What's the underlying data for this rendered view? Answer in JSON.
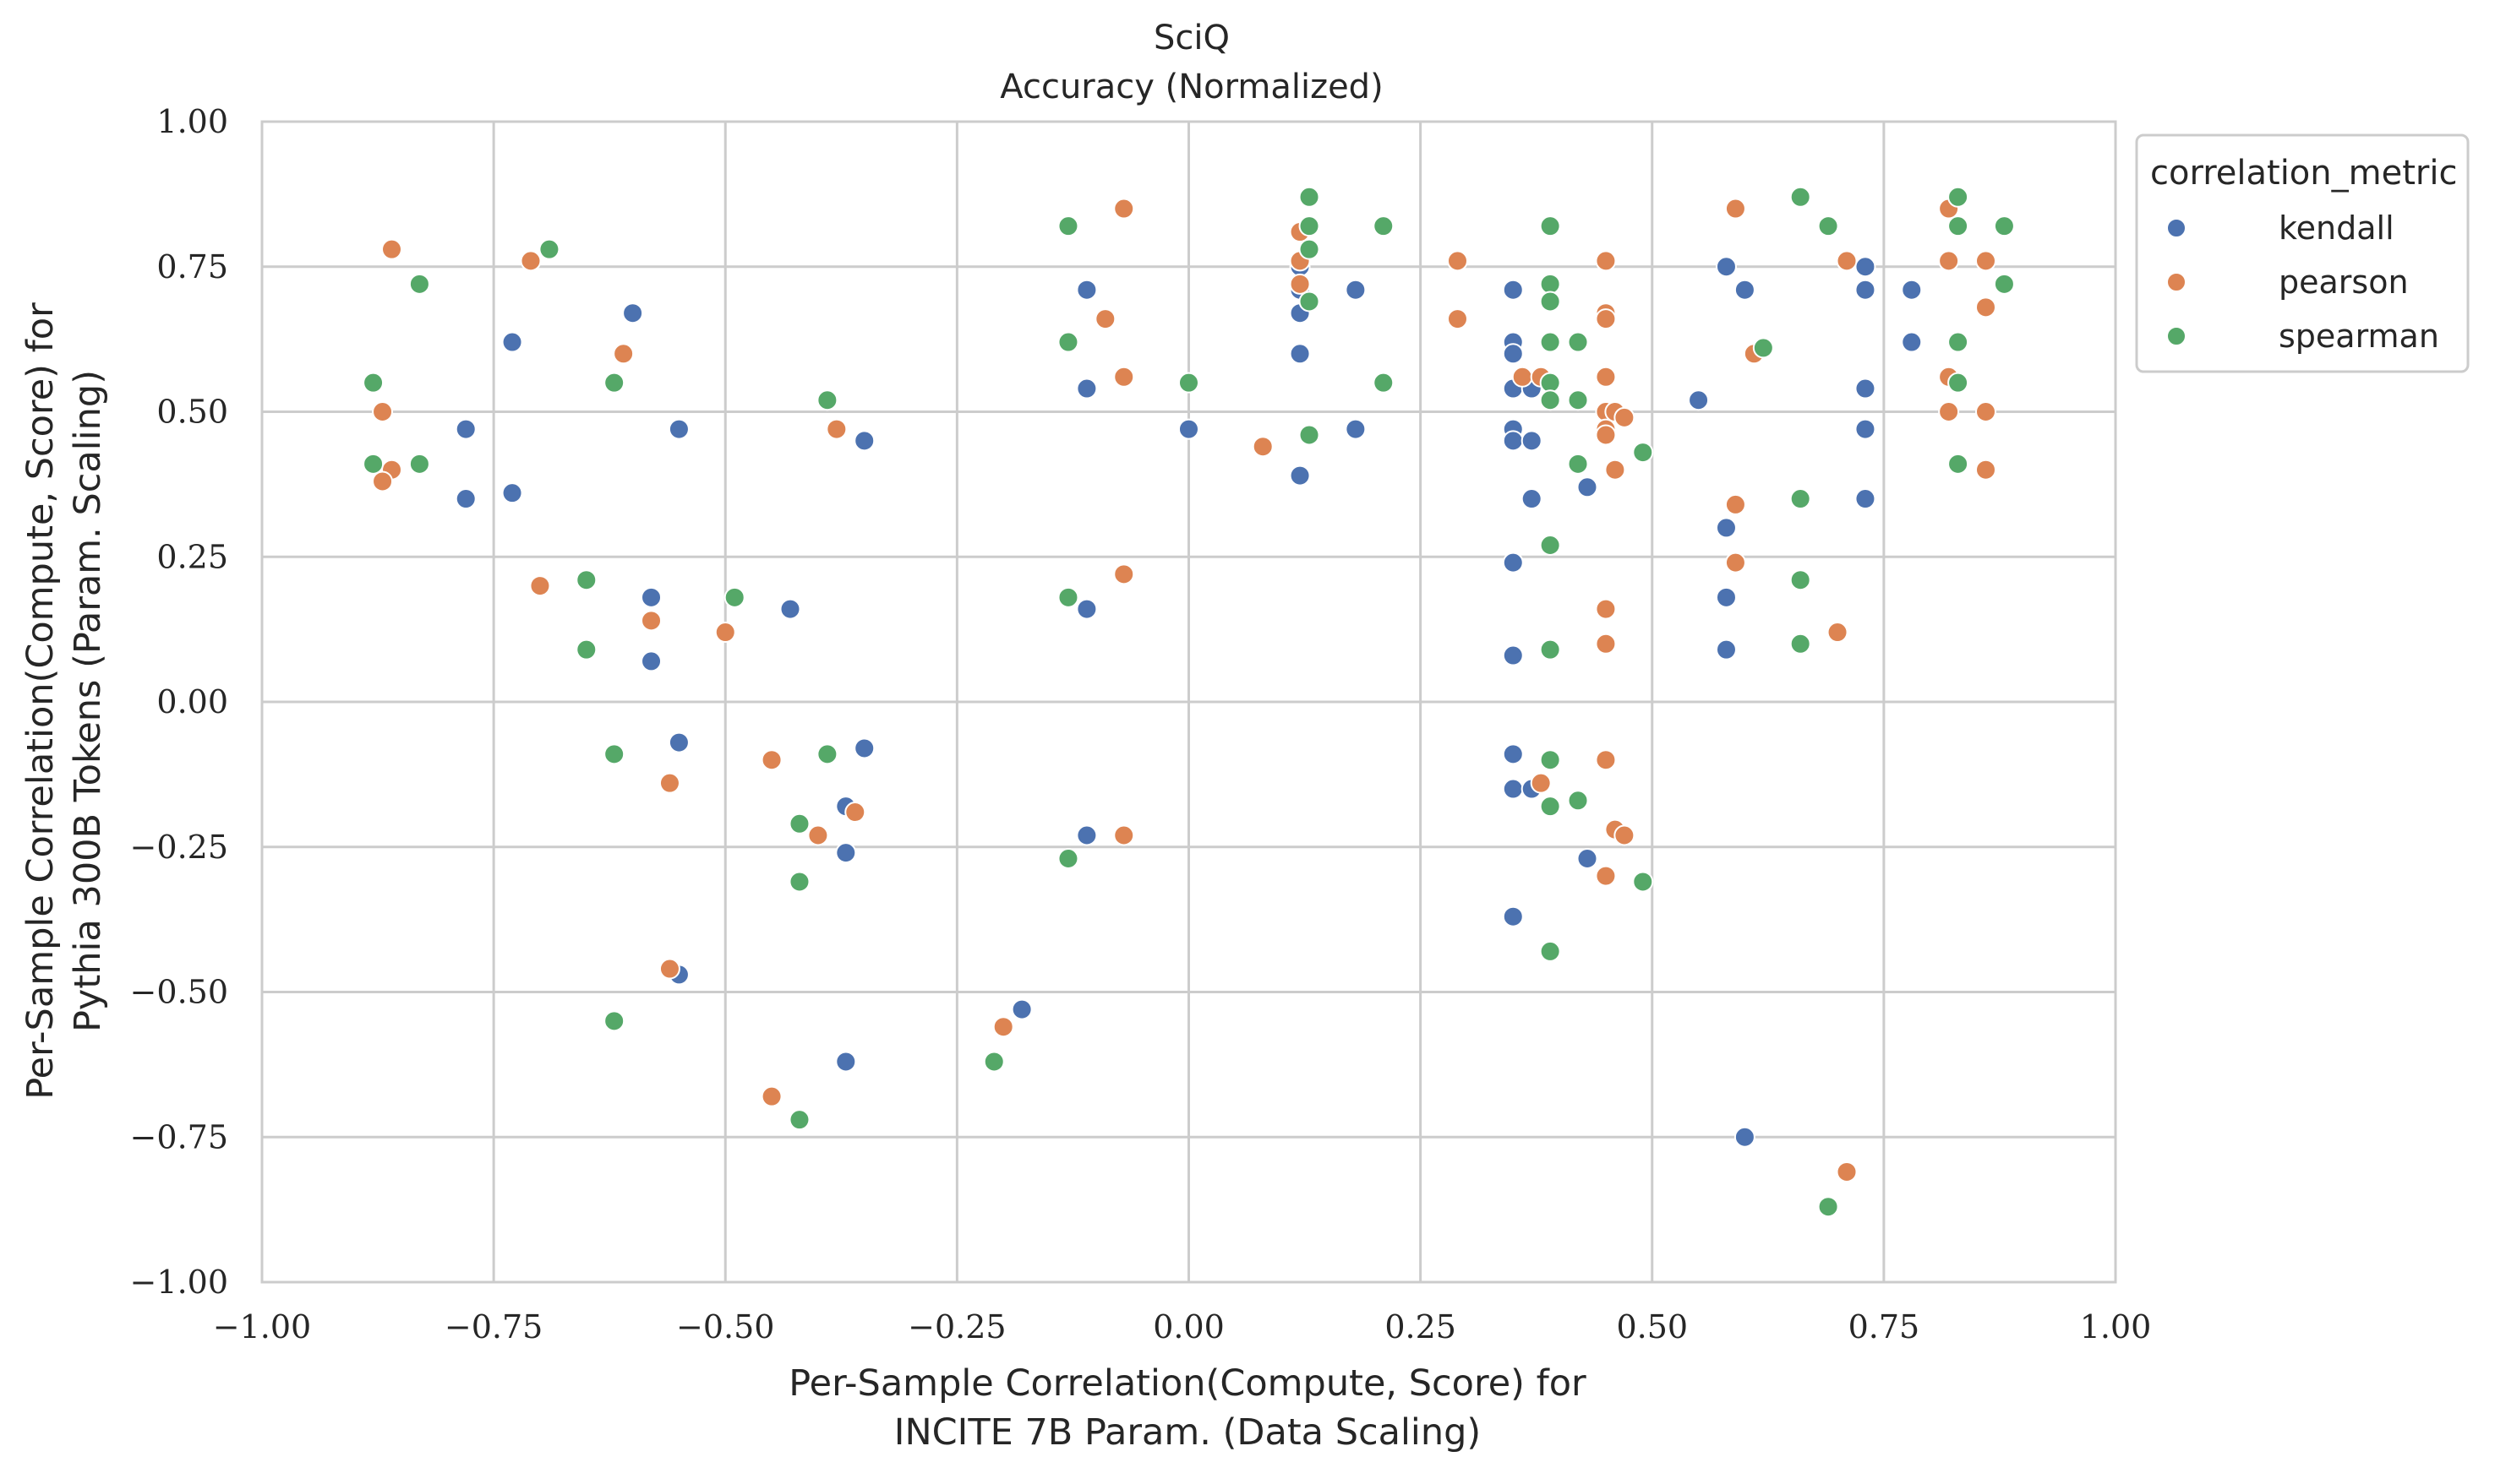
{
  "chart_data": {
    "type": "scatter",
    "title": "SciQ",
    "subtitle": "Accuracy (Normalized)",
    "xlabel": [
      "Per-Sample Correlation(Compute, Score) for",
      "INCITE 7B Param. (Data Scaling)"
    ],
    "ylabel": [
      "Per-Sample Correlation(Compute, Score) for",
      "Pythia 300B Tokens (Param. Scaling)"
    ],
    "xlim": [
      -1.0,
      1.0
    ],
    "ylim": [
      -1.0,
      1.0
    ],
    "xticks": [
      "−1.00",
      "−0.75",
      "−0.50",
      "−0.25",
      "0.00",
      "0.25",
      "0.50",
      "0.75",
      "1.00"
    ],
    "yticks": [
      "1.00",
      "0.75",
      "0.50",
      "0.25",
      "0.00",
      "−0.25",
      "−0.50",
      "−0.75",
      "−1.00"
    ],
    "xtick_values": [
      -1.0,
      -0.75,
      -0.5,
      -0.25,
      0.0,
      0.25,
      0.5,
      0.75,
      1.0
    ],
    "ytick_values": [
      1.0,
      0.75,
      0.5,
      0.25,
      0.0,
      -0.25,
      -0.5,
      -0.75,
      -1.0
    ],
    "grid": true,
    "legend_placement": "outside-top-right",
    "legend_title": "correlation_metric",
    "series": [
      {
        "name": "kendall",
        "color": "#4c72b0",
        "points": [
          [
            -0.78,
            0.47
          ],
          [
            -0.78,
            0.35
          ],
          [
            -0.73,
            0.62
          ],
          [
            -0.73,
            0.36
          ],
          [
            -0.6,
            0.67
          ],
          [
            -0.58,
            0.18
          ],
          [
            -0.58,
            0.07
          ],
          [
            -0.55,
            0.47
          ],
          [
            -0.55,
            -0.07
          ],
          [
            -0.55,
            -0.47
          ],
          [
            -0.43,
            0.16
          ],
          [
            -0.37,
            -0.18
          ],
          [
            -0.37,
            -0.26
          ],
          [
            -0.37,
            -0.62
          ],
          [
            -0.35,
            0.45
          ],
          [
            -0.35,
            -0.08
          ],
          [
            -0.18,
            -0.53
          ],
          [
            -0.11,
            0.71
          ],
          [
            -0.11,
            0.54
          ],
          [
            -0.11,
            0.16
          ],
          [
            -0.11,
            -0.23
          ],
          [
            0.0,
            0.47
          ],
          [
            0.12,
            0.75
          ],
          [
            0.12,
            0.71
          ],
          [
            0.12,
            0.67
          ],
          [
            0.12,
            0.6
          ],
          [
            0.12,
            0.39
          ],
          [
            0.18,
            0.71
          ],
          [
            0.18,
            0.47
          ],
          [
            0.35,
            0.71
          ],
          [
            0.35,
            0.62
          ],
          [
            0.35,
            0.6
          ],
          [
            0.35,
            0.54
          ],
          [
            0.35,
            0.47
          ],
          [
            0.35,
            0.45
          ],
          [
            0.35,
            0.24
          ],
          [
            0.35,
            0.08
          ],
          [
            0.35,
            -0.09
          ],
          [
            0.35,
            -0.15
          ],
          [
            0.35,
            -0.37
          ],
          [
            0.37,
            0.54
          ],
          [
            0.37,
            0.45
          ],
          [
            0.37,
            0.35
          ],
          [
            0.37,
            -0.15
          ],
          [
            0.43,
            0.37
          ],
          [
            0.43,
            -0.27
          ],
          [
            0.55,
            0.52
          ],
          [
            0.58,
            0.75
          ],
          [
            0.58,
            0.3
          ],
          [
            0.58,
            0.18
          ],
          [
            0.58,
            0.09
          ],
          [
            0.6,
            0.71
          ],
          [
            0.6,
            -0.75
          ],
          [
            0.73,
            0.75
          ],
          [
            0.73,
            0.71
          ],
          [
            0.73,
            0.54
          ],
          [
            0.73,
            0.47
          ],
          [
            0.73,
            0.35
          ],
          [
            0.78,
            0.71
          ],
          [
            0.78,
            0.62
          ]
        ]
      },
      {
        "name": "pearson",
        "color": "#dd8452",
        "points": [
          [
            -0.86,
            0.78
          ],
          [
            -0.86,
            0.4
          ],
          [
            -0.87,
            0.5
          ],
          [
            -0.87,
            0.38
          ],
          [
            -0.71,
            0.76
          ],
          [
            -0.7,
            0.2
          ],
          [
            -0.61,
            0.6
          ],
          [
            -0.58,
            0.14
          ],
          [
            -0.56,
            -0.14
          ],
          [
            -0.56,
            -0.46
          ],
          [
            -0.5,
            0.12
          ],
          [
            -0.45,
            -0.1
          ],
          [
            -0.45,
            -0.68
          ],
          [
            -0.4,
            -0.23
          ],
          [
            -0.38,
            0.47
          ],
          [
            -0.36,
            -0.19
          ],
          [
            -0.2,
            -0.56
          ],
          [
            -0.09,
            0.66
          ],
          [
            -0.07,
            0.85
          ],
          [
            -0.07,
            0.56
          ],
          [
            -0.07,
            0.22
          ],
          [
            -0.07,
            -0.23
          ],
          [
            0.08,
            0.44
          ],
          [
            0.12,
            0.81
          ],
          [
            0.12,
            0.76
          ],
          [
            0.12,
            0.72
          ],
          [
            0.29,
            0.76
          ],
          [
            0.29,
            0.66
          ],
          [
            0.36,
            0.56
          ],
          [
            0.38,
            0.56
          ],
          [
            0.38,
            -0.14
          ],
          [
            0.45,
            0.76
          ],
          [
            0.45,
            0.67
          ],
          [
            0.45,
            0.66
          ],
          [
            0.45,
            0.56
          ],
          [
            0.45,
            0.5
          ],
          [
            0.45,
            0.47
          ],
          [
            0.45,
            0.46
          ],
          [
            0.45,
            0.16
          ],
          [
            0.45,
            0.1
          ],
          [
            0.45,
            -0.1
          ],
          [
            0.45,
            -0.3
          ],
          [
            0.46,
            0.5
          ],
          [
            0.46,
            0.4
          ],
          [
            0.46,
            -0.22
          ],
          [
            0.47,
            0.49
          ],
          [
            0.47,
            -0.23
          ],
          [
            0.59,
            0.85
          ],
          [
            0.59,
            0.34
          ],
          [
            0.59,
            0.24
          ],
          [
            0.61,
            0.6
          ],
          [
            0.7,
            0.12
          ],
          [
            0.71,
            0.76
          ],
          [
            0.71,
            -0.81
          ],
          [
            0.82,
            0.85
          ],
          [
            0.82,
            0.76
          ],
          [
            0.82,
            0.56
          ],
          [
            0.82,
            0.5
          ],
          [
            0.86,
            0.76
          ],
          [
            0.86,
            0.68
          ],
          [
            0.86,
            0.5
          ],
          [
            0.86,
            0.4
          ]
        ]
      },
      {
        "name": "spearman",
        "color": "#55a868",
        "points": [
          [
            -0.88,
            0.55
          ],
          [
            -0.88,
            0.41
          ],
          [
            -0.83,
            0.72
          ],
          [
            -0.83,
            0.41
          ],
          [
            -0.69,
            0.78
          ],
          [
            -0.65,
            0.21
          ],
          [
            -0.65,
            0.09
          ],
          [
            -0.62,
            0.55
          ],
          [
            -0.62,
            -0.09
          ],
          [
            -0.62,
            -0.55
          ],
          [
            -0.49,
            0.18
          ],
          [
            -0.42,
            -0.21
          ],
          [
            -0.42,
            -0.31
          ],
          [
            -0.42,
            -0.72
          ],
          [
            -0.39,
            0.52
          ],
          [
            -0.39,
            -0.09
          ],
          [
            -0.21,
            -0.62
          ],
          [
            -0.13,
            0.82
          ],
          [
            -0.13,
            0.62
          ],
          [
            -0.13,
            0.18
          ],
          [
            -0.13,
            -0.27
          ],
          [
            0.0,
            0.55
          ],
          [
            0.13,
            0.87
          ],
          [
            0.13,
            0.82
          ],
          [
            0.13,
            0.78
          ],
          [
            0.13,
            0.69
          ],
          [
            0.13,
            0.46
          ],
          [
            0.21,
            0.82
          ],
          [
            0.21,
            0.55
          ],
          [
            0.39,
            0.82
          ],
          [
            0.39,
            0.72
          ],
          [
            0.39,
            0.69
          ],
          [
            0.39,
            0.62
          ],
          [
            0.39,
            0.55
          ],
          [
            0.39,
            0.52
          ],
          [
            0.39,
            0.27
          ],
          [
            0.39,
            0.09
          ],
          [
            0.39,
            -0.1
          ],
          [
            0.39,
            -0.18
          ],
          [
            0.39,
            -0.43
          ],
          [
            0.42,
            0.62
          ],
          [
            0.42,
            0.52
          ],
          [
            0.42,
            0.41
          ],
          [
            0.42,
            -0.17
          ],
          [
            0.49,
            0.43
          ],
          [
            0.49,
            -0.31
          ],
          [
            0.62,
            0.61
          ],
          [
            0.66,
            0.87
          ],
          [
            0.66,
            0.35
          ],
          [
            0.66,
            0.21
          ],
          [
            0.66,
            0.1
          ],
          [
            0.69,
            0.82
          ],
          [
            0.69,
            -0.87
          ],
          [
            0.83,
            0.87
          ],
          [
            0.83,
            0.82
          ],
          [
            0.83,
            0.62
          ],
          [
            0.83,
            0.55
          ],
          [
            0.83,
            0.41
          ],
          [
            0.88,
            0.82
          ],
          [
            0.88,
            0.72
          ]
        ]
      }
    ]
  }
}
